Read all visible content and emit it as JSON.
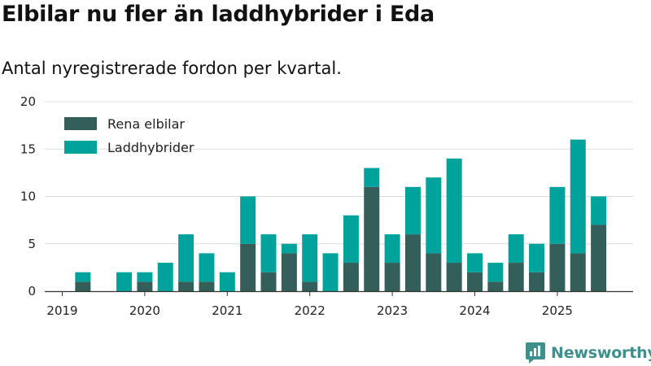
{
  "header": {
    "title": "Elbilar nu fler än laddhybrider i Eda",
    "subtitle": "Antal nyregistrerade fordon per kvartal."
  },
  "brand": {
    "name": "Newsworthy",
    "color": "#3f8f8c",
    "icon": "newsworthy-logo-icon"
  },
  "chart_data": {
    "type": "bar",
    "stacked": true,
    "title": "Elbilar nu fler än laddhybrider i Eda",
    "subtitle": "Antal nyregistrerade fordon per kvartal.",
    "xlabel": "",
    "ylabel": "",
    "ylim": [
      0,
      20
    ],
    "yticks": [
      0,
      5,
      10,
      15,
      20
    ],
    "x_tick_labels": [
      "2019",
      "2020",
      "2021",
      "2022",
      "2023",
      "2024",
      "2025"
    ],
    "categories": [
      "2019-Q1",
      "2019-Q2",
      "2019-Q3",
      "2019-Q4",
      "2020-Q1",
      "2020-Q2",
      "2020-Q3",
      "2020-Q4",
      "2021-Q1",
      "2021-Q2",
      "2021-Q3",
      "2021-Q4",
      "2022-Q1",
      "2022-Q2",
      "2022-Q3",
      "2022-Q4",
      "2023-Q1",
      "2023-Q2",
      "2023-Q3",
      "2023-Q4",
      "2024-Q1",
      "2024-Q2",
      "2024-Q3",
      "2024-Q4",
      "2025-Q1",
      "2025-Q2",
      "2025-Q3"
    ],
    "series": [
      {
        "name": "Rena elbilar",
        "color": "#335e5a",
        "values": [
          0,
          1,
          0,
          0,
          1,
          0,
          1,
          1,
          0,
          5,
          2,
          4,
          1,
          0,
          3,
          11,
          3,
          6,
          4,
          3,
          2,
          1,
          3,
          2,
          5,
          4,
          7
        ]
      },
      {
        "name": "Laddhybrider",
        "color": "#00a39b",
        "values": [
          0,
          1,
          0,
          2,
          1,
          3,
          5,
          3,
          2,
          5,
          4,
          1,
          5,
          4,
          5,
          2,
          3,
          5,
          8,
          11,
          2,
          2,
          3,
          3,
          6,
          12,
          3
        ]
      }
    ],
    "legend": "top-left",
    "grid": true
  }
}
